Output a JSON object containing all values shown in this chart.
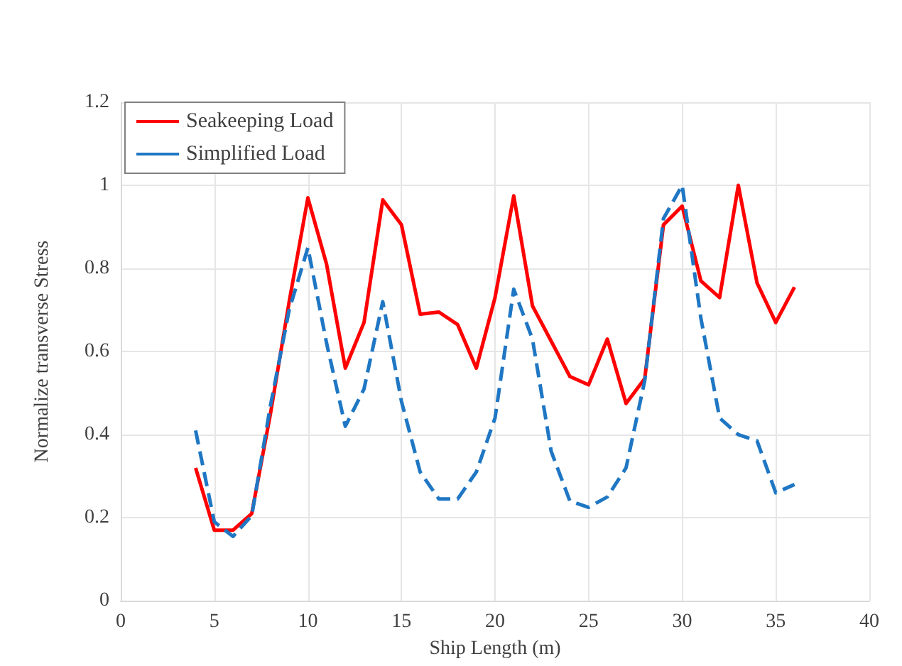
{
  "chart_data": {
    "type": "line",
    "xlabel": "Ship Length (m)",
    "ylabel": "Normalize transverse Stress",
    "x": [
      4,
      5,
      6,
      7,
      8,
      9,
      10,
      11,
      12,
      13,
      14,
      15,
      16,
      17,
      18,
      19,
      20,
      21,
      22,
      23,
      24,
      25,
      26,
      27,
      28,
      29,
      30,
      31,
      32,
      33,
      34,
      35,
      36
    ],
    "series": [
      {
        "name": "Seakeeping Load",
        "color": "#ff0000",
        "line_style": "solid",
        "values": [
          0.32,
          0.17,
          0.17,
          0.21,
          0.45,
          0.72,
          0.97,
          0.81,
          0.56,
          0.67,
          0.965,
          0.905,
          0.69,
          0.695,
          0.665,
          0.56,
          0.73,
          0.975,
          0.71,
          0.625,
          0.54,
          0.52,
          0.63,
          0.475,
          0.535,
          0.905,
          0.95,
          0.77,
          0.73,
          1.0,
          0.765,
          0.67,
          0.755
        ]
      },
      {
        "name": "Simplified Load",
        "color": "#1f77c4",
        "line_style": "dashed",
        "values": [
          0.41,
          0.19,
          0.155,
          0.205,
          0.47,
          0.7,
          0.85,
          0.62,
          0.42,
          0.51,
          0.72,
          0.48,
          0.31,
          0.245,
          0.245,
          0.31,
          0.44,
          0.75,
          0.63,
          0.36,
          0.24,
          0.225,
          0.25,
          0.32,
          0.53,
          0.92,
          1.0,
          0.68,
          0.44,
          0.4,
          0.385,
          0.26,
          0.28
        ]
      }
    ],
    "xlim": [
      0,
      40
    ],
    "xticks": [
      0,
      5,
      10,
      15,
      20,
      25,
      30,
      35,
      40
    ],
    "ylim": [
      0,
      1.2
    ],
    "yticks": [
      0,
      0.2,
      0.4,
      0.6,
      0.8,
      1,
      1.2
    ],
    "grid": true,
    "legend": "top left",
    "marker": "none"
  }
}
